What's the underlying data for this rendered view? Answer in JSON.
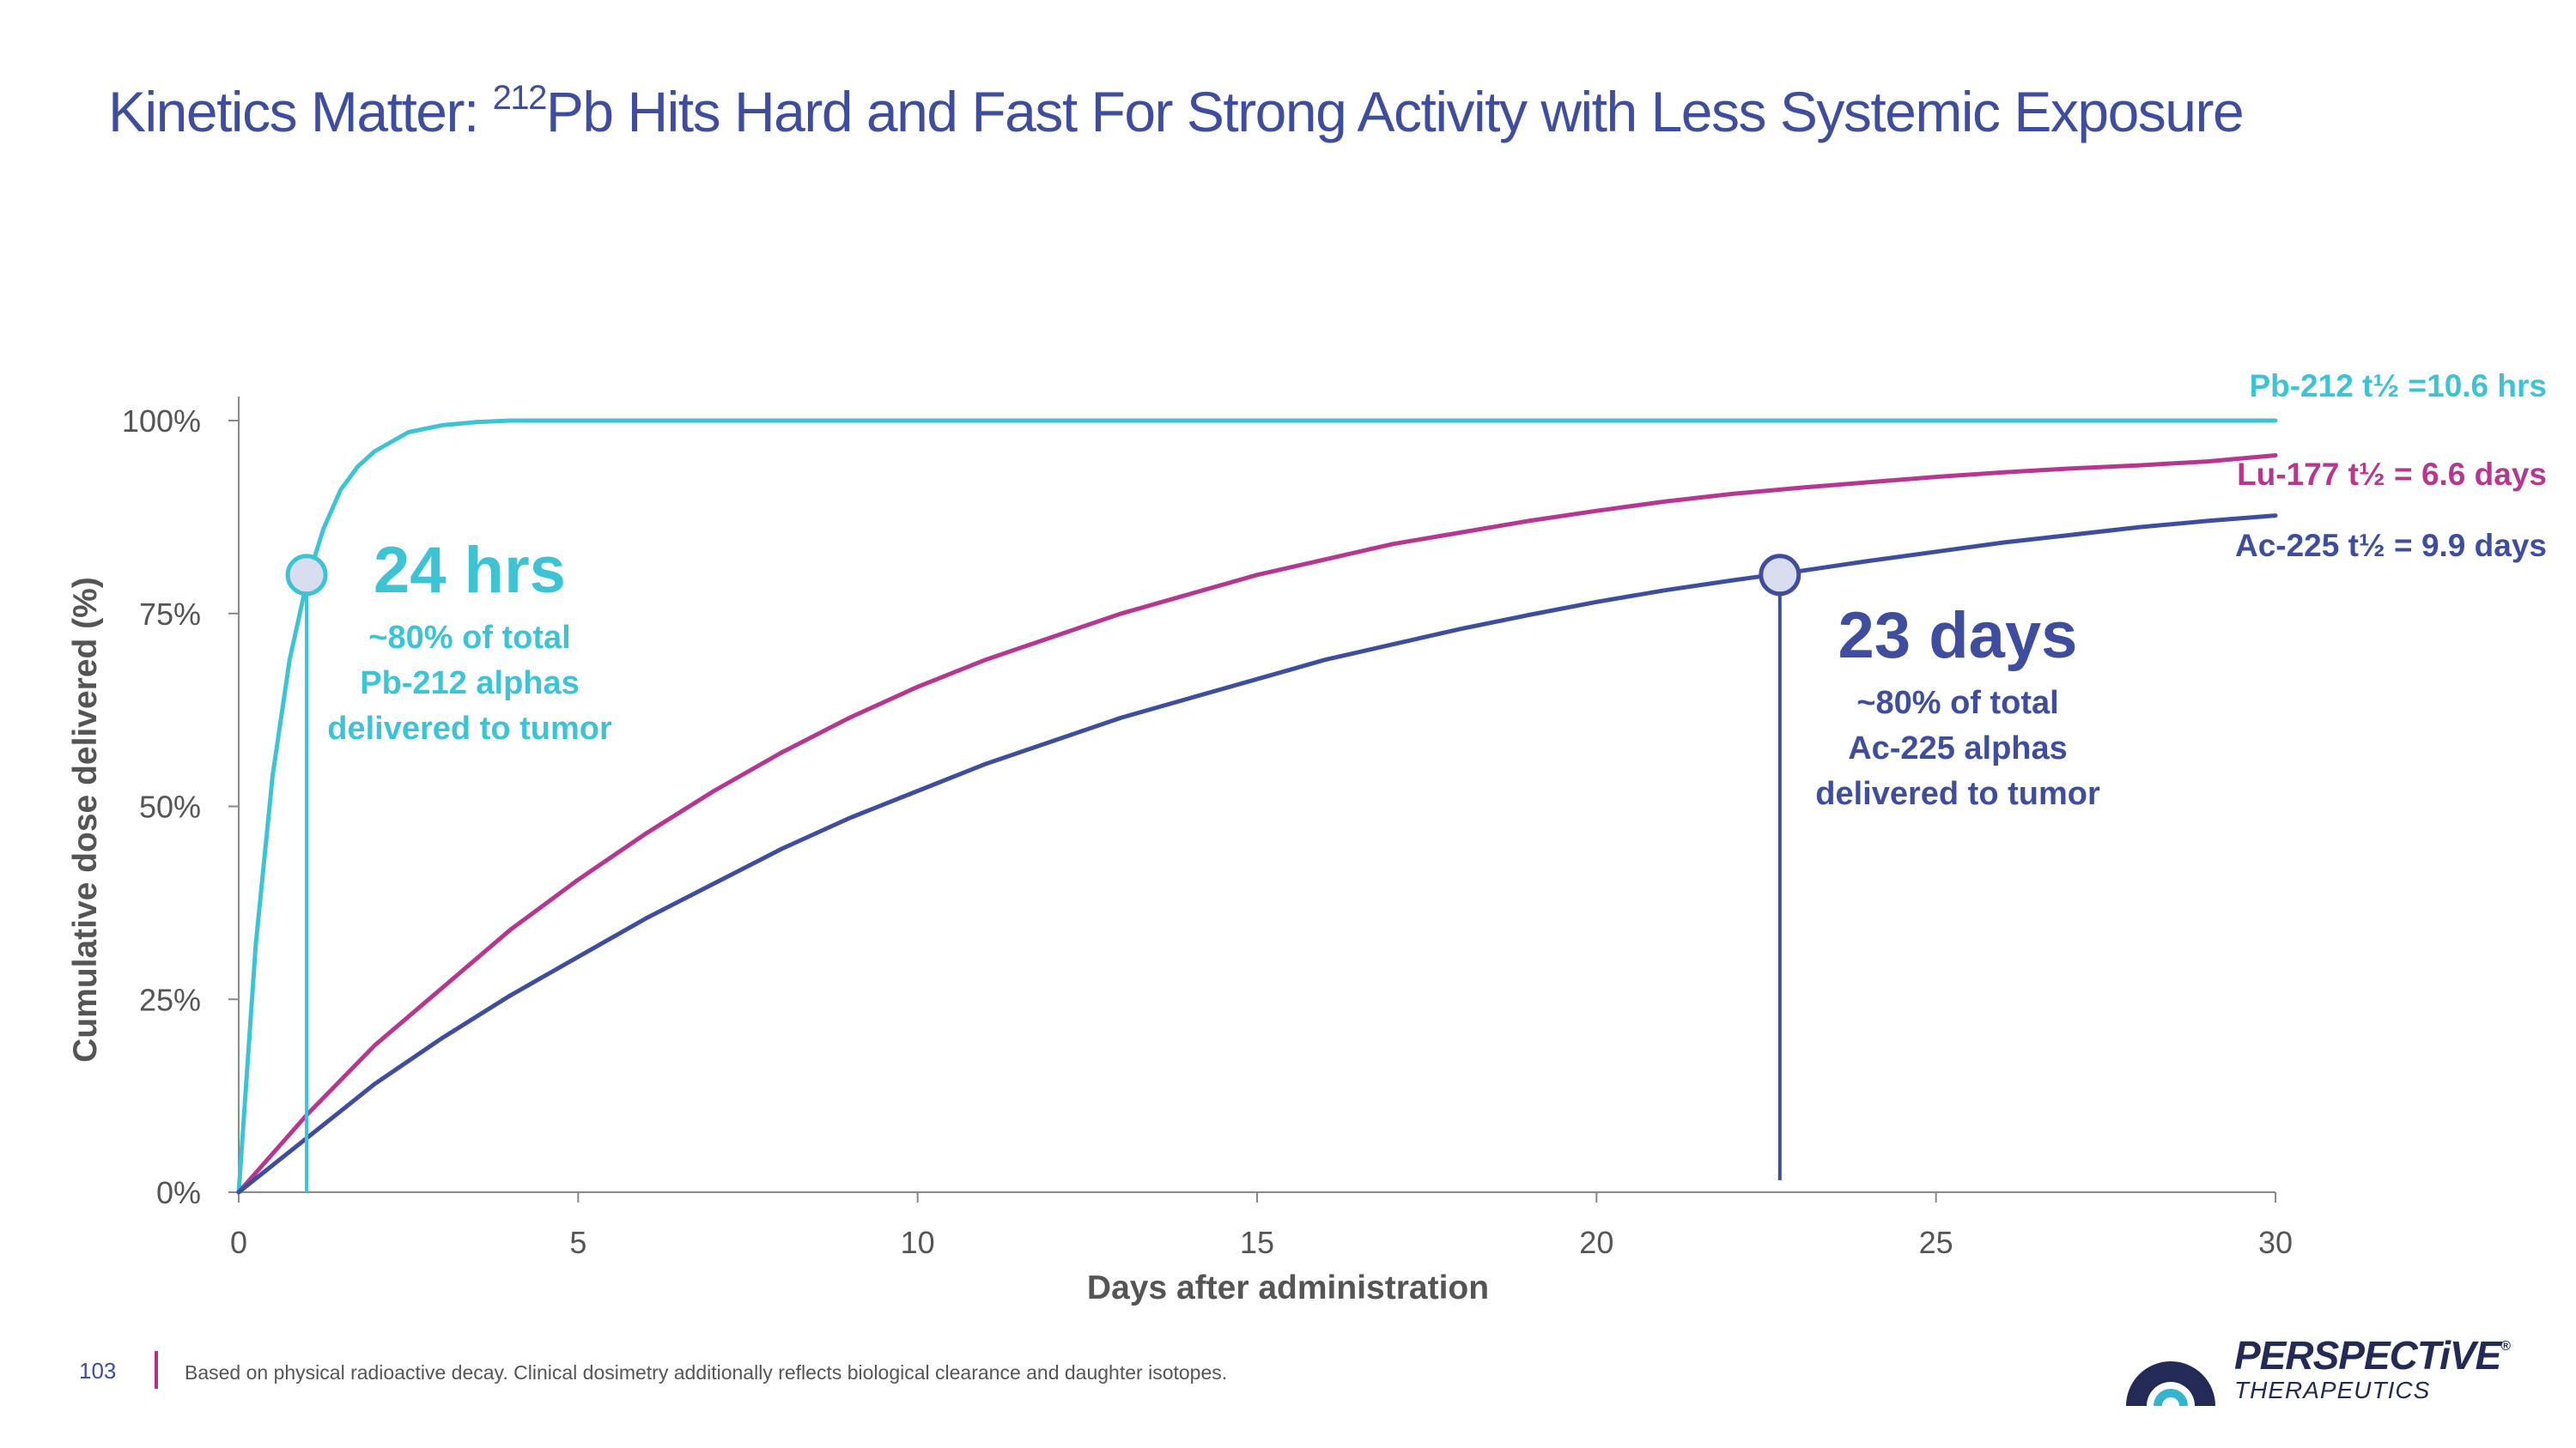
{
  "slide": {
    "title_prefix": "Kinetics Matter: ",
    "title_sup": "212",
    "title_suffix": "Pb Hits Hard and Fast For Strong Activity with Less Systemic Exposure",
    "page_number": "103",
    "footnote": "Based on physical radioactive decay. Clinical dosimetry additionally reflects biological clearance and daughter isotopes.",
    "logo_word": "PERSPECTiVE",
    "logo_reg": "®",
    "logo_sub": "THERAPEUTICS"
  },
  "colors": {
    "pb212": "#3ec3d5",
    "lu177": "#b5378f",
    "ac225": "#3e4d9e",
    "axis": "#888888",
    "text": "#555555",
    "logo_dark": "#222a55",
    "logo_accent": "#35b3cf"
  },
  "chart_data": {
    "type": "line",
    "title": "",
    "xlabel": "Days after administration",
    "ylabel": "Cumulative dose delivered (%)",
    "xlim": [
      0,
      30
    ],
    "ylim": [
      0,
      100
    ],
    "x_ticks": [
      0,
      5,
      10,
      15,
      20,
      25,
      30
    ],
    "y_ticks": [
      0,
      25,
      50,
      75,
      100
    ],
    "y_tick_labels": [
      "0%",
      "25%",
      "50%",
      "75%",
      "100%"
    ],
    "grid": false,
    "series": [
      {
        "name": "Pb-212 t½ =10.6 hrs",
        "color": "#3ec3d5",
        "x": [
          0,
          0.25,
          0.5,
          0.75,
          1,
          1.25,
          1.5,
          1.75,
          2,
          2.5,
          3,
          3.5,
          4,
          5,
          30
        ],
        "y": [
          0,
          32,
          54,
          69,
          79,
          86,
          91,
          94,
          96,
          98.5,
          99.4,
          99.8,
          100,
          100,
          100
        ]
      },
      {
        "name": "Lu-177 t½ = 6.6 days",
        "color": "#b5378f",
        "x": [
          0,
          1,
          2,
          3,
          4,
          5,
          6,
          7,
          8,
          9,
          10,
          11,
          12,
          13,
          14,
          15,
          16,
          17,
          18,
          19,
          20,
          21,
          22,
          23,
          24,
          25,
          26,
          27,
          28,
          29,
          30
        ],
        "y": [
          0,
          10,
          19,
          26.5,
          34,
          40.5,
          46.5,
          52,
          57,
          61.5,
          65.5,
          69,
          72,
          75,
          77.5,
          80,
          82,
          84,
          85.5,
          87,
          88.3,
          89.5,
          90.5,
          91.3,
          92,
          92.7,
          93.3,
          93.8,
          94.2,
          94.7,
          95.5
        ]
      },
      {
        "name": "Ac-225 t½ = 9.9 days",
        "color": "#3e4d9e",
        "x": [
          0,
          1,
          2,
          3,
          4,
          5,
          6,
          7,
          8,
          9,
          10,
          11,
          12,
          13,
          14,
          15,
          16,
          17,
          18,
          19,
          20,
          21,
          22,
          23,
          24,
          25,
          26,
          27,
          28,
          29,
          30
        ],
        "y": [
          0,
          7,
          14,
          20,
          25.5,
          30.5,
          35.5,
          40,
          44.5,
          48.5,
          52,
          55.5,
          58.5,
          61.5,
          64,
          66.5,
          69,
          71,
          73,
          74.8,
          76.5,
          78,
          79.3,
          80.5,
          81.8,
          83,
          84.2,
          85.2,
          86.2,
          87,
          87.7
        ]
      }
    ],
    "annotations": [
      {
        "label": "24 hrs",
        "lines": [
          "~80% of total",
          "Pb-212 alphas",
          "delivered to tumor"
        ],
        "x": 1,
        "y": 80,
        "color": "#3ec3d5"
      },
      {
        "label": "23 days",
        "lines": [
          "~80% of total",
          "Ac-225 alphas",
          "delivered to tumor"
        ],
        "x": 22.7,
        "y": 80,
        "color": "#3e4d9e"
      }
    ]
  }
}
